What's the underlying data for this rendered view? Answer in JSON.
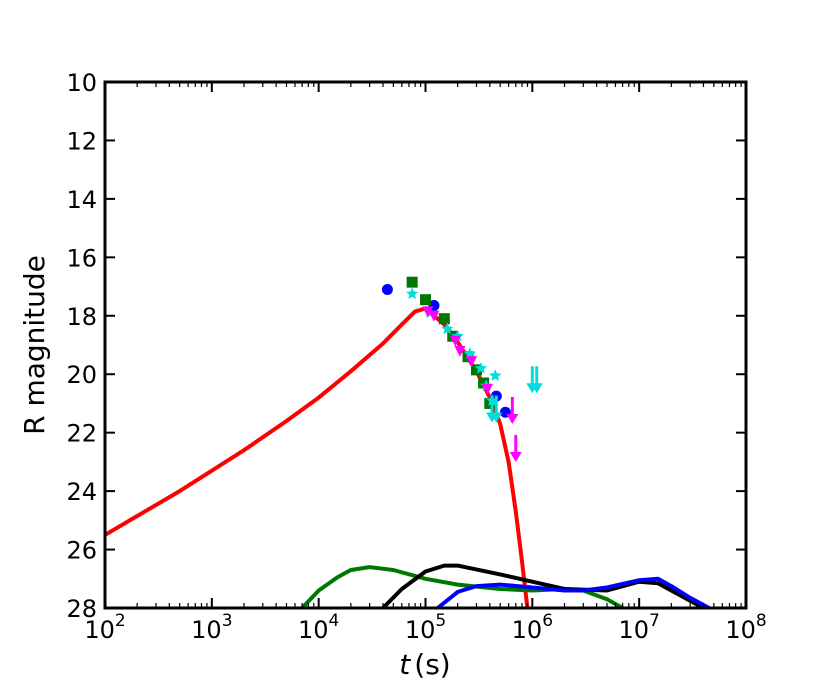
{
  "chart_data": {
    "type": "scatter",
    "title": "",
    "xlabel": {
      "var": "t",
      "unit": "(s)"
    },
    "ylabel": "R magnitude",
    "x_scale": "log",
    "y_inverted": true,
    "xlim": [
      100,
      100000000
    ],
    "ylim": [
      10,
      28
    ],
    "x_ticks": [
      {
        "value": 100,
        "base": "10",
        "exp": "2"
      },
      {
        "value": 1000,
        "base": "10",
        "exp": "3"
      },
      {
        "value": 10000,
        "base": "10",
        "exp": "4"
      },
      {
        "value": 100000,
        "base": "10",
        "exp": "5"
      },
      {
        "value": 1000000,
        "base": "10",
        "exp": "6"
      },
      {
        "value": 10000000,
        "base": "10",
        "exp": "7"
      },
      {
        "value": 100000000,
        "base": "10",
        "exp": "8"
      }
    ],
    "y_ticks": [
      10,
      12,
      14,
      16,
      18,
      20,
      22,
      24,
      26,
      28
    ],
    "grid": false,
    "legend": "none",
    "series": [
      {
        "kind": "line",
        "color": "#ff0000",
        "points": [
          [
            100,
            25.5
          ],
          [
            200,
            24.85
          ],
          [
            500,
            24.0
          ],
          [
            1000,
            23.3
          ],
          [
            2000,
            22.6
          ],
          [
            5000,
            21.6
          ],
          [
            10000,
            20.8
          ],
          [
            20000,
            19.9
          ],
          [
            40000,
            18.95
          ],
          [
            60000,
            18.3
          ],
          [
            80000,
            17.85
          ],
          [
            100000,
            17.75
          ],
          [
            150000,
            18.3
          ],
          [
            200000,
            18.9
          ],
          [
            300000,
            19.9
          ],
          [
            400000,
            20.8
          ],
          [
            500000,
            21.7
          ],
          [
            600000,
            23.0
          ],
          [
            700000,
            24.7
          ],
          [
            800000,
            26.4
          ],
          [
            900000,
            28.0
          ]
        ]
      },
      {
        "kind": "line",
        "color": "#007700",
        "points": [
          [
            7000,
            28.0
          ],
          [
            10000,
            27.4
          ],
          [
            15000,
            26.95
          ],
          [
            20000,
            26.7
          ],
          [
            30000,
            26.6
          ],
          [
            50000,
            26.7
          ],
          [
            100000,
            27.0
          ],
          [
            200000,
            27.2
          ],
          [
            500000,
            27.35
          ],
          [
            1000000,
            27.4
          ],
          [
            2000000,
            27.35
          ],
          [
            3000000,
            27.4
          ],
          [
            5000000,
            27.7
          ],
          [
            7000000,
            28.0
          ]
        ]
      },
      {
        "kind": "line",
        "color": "#000000",
        "points": [
          [
            40000,
            28.0
          ],
          [
            60000,
            27.35
          ],
          [
            100000,
            26.75
          ],
          [
            150000,
            26.55
          ],
          [
            200000,
            26.55
          ],
          [
            500000,
            26.85
          ],
          [
            1000000,
            27.1
          ],
          [
            2000000,
            27.35
          ],
          [
            5000000,
            27.4
          ],
          [
            10000000,
            27.1
          ],
          [
            15000000,
            27.15
          ],
          [
            20000000,
            27.4
          ],
          [
            30000000,
            27.75
          ],
          [
            40000000,
            28.0
          ]
        ]
      },
      {
        "kind": "line",
        "color": "#0000ff",
        "points": [
          [
            130000,
            28.0
          ],
          [
            200000,
            27.45
          ],
          [
            300000,
            27.25
          ],
          [
            500000,
            27.2
          ],
          [
            1000000,
            27.3
          ],
          [
            2000000,
            27.4
          ],
          [
            3000000,
            27.4
          ],
          [
            5000000,
            27.3
          ],
          [
            10000000,
            27.05
          ],
          [
            15000000,
            27.0
          ],
          [
            20000000,
            27.25
          ],
          [
            30000000,
            27.65
          ],
          [
            45000000,
            28.0
          ]
        ]
      },
      {
        "kind": "points",
        "marker": "circle",
        "color": "#0000ff",
        "points": [
          [
            44000,
            17.1
          ],
          [
            120000,
            17.65
          ],
          [
            460000,
            20.75
          ],
          [
            560000,
            21.3
          ]
        ]
      },
      {
        "kind": "points",
        "marker": "square",
        "color": "#007700",
        "points": [
          [
            75000,
            16.85
          ],
          [
            100000,
            17.45
          ],
          [
            150000,
            18.1
          ],
          [
            180000,
            18.7
          ],
          [
            250000,
            19.4
          ],
          [
            300000,
            19.85
          ],
          [
            350000,
            20.3
          ],
          [
            400000,
            21.0
          ]
        ]
      },
      {
        "kind": "points",
        "marker": "star",
        "color": "#00dddd",
        "points": [
          [
            75000,
            17.25
          ],
          [
            110000,
            17.9
          ],
          [
            160000,
            18.45
          ],
          [
            200000,
            18.7
          ],
          [
            260000,
            19.3
          ],
          [
            330000,
            19.8
          ],
          [
            370000,
            20.4
          ],
          [
            450000,
            20.05
          ],
          [
            420000,
            20.9
          ]
        ]
      },
      {
        "kind": "points",
        "marker": "triangle-down",
        "color": "#ff00ff",
        "points": [
          [
            105000,
            17.85
          ],
          [
            120000,
            18.0
          ],
          [
            190000,
            18.85
          ],
          [
            210000,
            19.2
          ],
          [
            270000,
            19.55
          ],
          [
            380000,
            20.5
          ]
        ]
      },
      {
        "kind": "upper_limits",
        "color": "#00dddd",
        "points": [
          [
            420000,
            21.55
          ],
          [
            460000,
            21.55
          ],
          [
            1000000,
            20.55
          ],
          [
            1100000,
            20.55
          ]
        ]
      },
      {
        "kind": "upper_limits",
        "color": "#ff00ff",
        "points": [
          [
            650000,
            21.6
          ],
          [
            700000,
            22.9
          ]
        ]
      }
    ]
  }
}
